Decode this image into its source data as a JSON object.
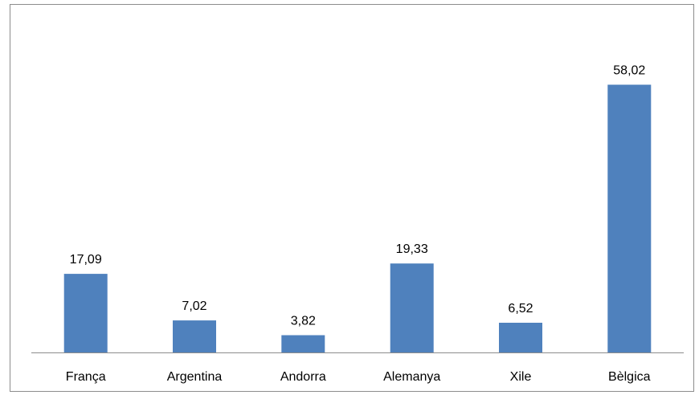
{
  "chart_data": {
    "type": "bar",
    "categories": [
      "França",
      "Argentina",
      "Andorra",
      "Alemanya",
      "Xile",
      "Bèlgica"
    ],
    "values": [
      17.09,
      7.02,
      3.82,
      19.33,
      6.52,
      58.02
    ],
    "value_labels": [
      "17,09",
      "7,02",
      "3,82",
      "19,33",
      "6,52",
      "58,02"
    ],
    "title": "",
    "xlabel": "",
    "ylabel": "",
    "ylim": [
      0,
      70
    ],
    "grid": false,
    "legend": "none",
    "bar_color": "#4f81bd",
    "axis_color": "#8c8c8c"
  }
}
